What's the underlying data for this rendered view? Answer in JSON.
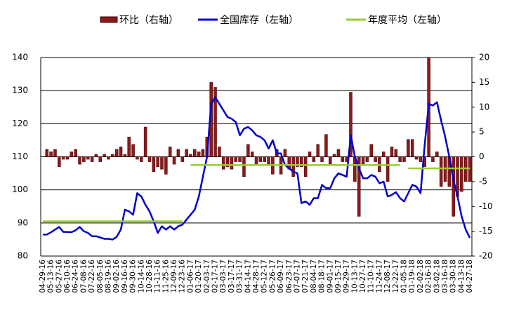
{
  "chart_data": {
    "type": "combo",
    "categories": [
      "04-29-16",
      null,
      "05-13-16",
      null,
      "05-27-16",
      null,
      "06-10-16",
      null,
      "06-24-16",
      null,
      "07-08-16",
      null,
      "07-22-16",
      null,
      "08-05-16",
      null,
      "08-19-16",
      null,
      "09-02-16",
      null,
      "09-16-16",
      null,
      "09-30-16",
      null,
      "10-14-16",
      null,
      "10-28-16",
      null,
      "11-11-16",
      null,
      "11-25-16",
      null,
      "12-09-16",
      null,
      "12-23-16",
      null,
      "01-06-17",
      null,
      "01-20-17",
      null,
      "02-03-17",
      null,
      "02-17-17",
      null,
      "03-03-17",
      null,
      "03-17-17",
      null,
      "03-31-17",
      null,
      "04-14-17",
      null,
      "04-28-17",
      null,
      "05-12-17",
      null,
      "05-26-17",
      null,
      "06-09-17",
      null,
      "06-23-17",
      null,
      "07-07-17",
      null,
      "07-21-17",
      null,
      "08-04-17",
      null,
      "08-18-17",
      null,
      "09-01-17",
      null,
      "09-15-17",
      null,
      "09-29-17",
      null,
      "10-13-17",
      null,
      "10-27-17",
      null,
      "11-10-17",
      null,
      "11-24-17",
      null,
      "12-08-17",
      null,
      "12-22-17",
      null,
      "01-05-18",
      null,
      "01-19-18",
      null,
      "02-02-18",
      null,
      "02-16-18",
      null,
      "03-02-18",
      null,
      "03-16-18",
      null,
      "03-30-18",
      null,
      "04-13-18",
      null,
      "04-27-18"
    ],
    "series": [
      {
        "name": "环比（右轴）",
        "type": "bar",
        "axis": "y2",
        "color": "#8b1a1a",
        "values": [
          0,
          1.5,
          1,
          1.5,
          -2,
          -0.5,
          -0.5,
          1,
          1.5,
          -1.5,
          -1,
          -0.5,
          -1,
          0.5,
          -1,
          0.5,
          -0.5,
          0.5,
          1.5,
          2,
          0.5,
          4,
          2.5,
          -0.5,
          -1,
          6,
          -1,
          -3,
          -2,
          -2.5,
          -3.5,
          2,
          -1.5,
          1.5,
          -1,
          1.5,
          0.5,
          1.5,
          1,
          1.5,
          4,
          15,
          14,
          2,
          -2.5,
          -2,
          -2.5,
          -1,
          -1,
          -4,
          2.5,
          1,
          -1.5,
          -1,
          -1,
          -1.5,
          -3.5,
          1.5,
          -3.5,
          1.5,
          -2.5,
          -4,
          -2,
          -2,
          -4,
          1,
          -1,
          2.5,
          -1,
          4.5,
          -1.5,
          0.5,
          1.5,
          -1,
          -1,
          13,
          -5,
          -12,
          -1.5,
          -1,
          2.5,
          -1,
          -3,
          1,
          -5,
          2,
          1.5,
          -1,
          -1,
          3.5,
          3.5,
          -0.5,
          -1,
          -2,
          20,
          -1,
          1,
          -6,
          -5,
          -6,
          -12,
          -8,
          -7,
          -5,
          -5
        ]
      },
      {
        "name": "全国库存（左轴）",
        "type": "line",
        "color": "#0000cc",
        "values": [
          86.5,
          86.5,
          87.2,
          88,
          88.8,
          87.3,
          87.3,
          87.2,
          87.8,
          88.8,
          87.5,
          87,
          86,
          86,
          85.6,
          85.2,
          85.2,
          85,
          85.8,
          88,
          94,
          93.5,
          92.5,
          99,
          98,
          95.5,
          93.5,
          90.5,
          87,
          89,
          88,
          89,
          88,
          89,
          89.5,
          91,
          92.5,
          94,
          98,
          104,
          110,
          126,
          128,
          126,
          124,
          122,
          121.5,
          120.5,
          116.5,
          118.5,
          119,
          118,
          116.5,
          116,
          115,
          112.5,
          115,
          111,
          111,
          107.5,
          106.5,
          105.5,
          105,
          96,
          96.5,
          95.5,
          97.5,
          97.5,
          101.5,
          100.5,
          100.5,
          103.5,
          105,
          104.5,
          104,
          116.5,
          110,
          106.5,
          103.5,
          103.5,
          104.5,
          104,
          102,
          102.5,
          98,
          98.5,
          99.3,
          97.5,
          96.5,
          99,
          101.5,
          101,
          99,
          113.5,
          126,
          125.5,
          126.5,
          121,
          116,
          110,
          103,
          98,
          92,
          88,
          85.5
        ]
      },
      {
        "name": "年度平均（左轴）",
        "type": "line",
        "color": "#99cc33",
        "values": [
          90.5,
          90.5,
          90.5,
          90.5,
          90.5,
          90.5,
          90.5,
          90.5,
          90.5,
          90.5,
          90.5,
          90.5,
          90.5,
          90.5,
          90.5,
          90.5,
          90.5,
          90.5,
          90.5,
          90.5,
          90.5,
          90.5,
          90.5,
          90.5,
          90.5,
          90.5,
          90.5,
          90.5,
          90.5,
          90.5,
          90.5,
          90.5,
          90.5,
          90.5,
          90.5,
          null,
          107.5,
          107.5,
          107.5,
          107.5,
          107.5,
          107.5,
          107.5,
          107.5,
          107.5,
          107.5,
          107.5,
          107.5,
          107.5,
          107.5,
          107.5,
          107.5,
          107.5,
          107.5,
          107.5,
          107.5,
          107.5,
          107.5,
          107.5,
          107.5,
          107.5,
          107.5,
          107.5,
          107.5,
          107.5,
          107.5,
          107.5,
          107.5,
          107.5,
          107.5,
          107.5,
          107.5,
          107.5,
          107.5,
          107.5,
          107.5,
          107.5,
          107.5,
          107.5,
          107.5,
          107.5,
          107.5,
          107.5,
          107.5,
          107.5,
          107.5,
          107.5,
          107.5,
          null,
          106.5,
          106.5,
          106.5,
          106.5,
          106.5,
          106.5,
          106.5,
          106.5,
          106.5,
          106.5,
          106.5,
          106.5,
          106.5,
          106.5,
          106.5,
          106.5
        ]
      }
    ],
    "ylim": [
      80,
      140
    ],
    "yticks": [
      80,
      90,
      100,
      110,
      120,
      130,
      140
    ],
    "y2lim": [
      -20,
      20
    ],
    "y2ticks": [
      -20,
      -15,
      -10,
      -5,
      0,
      5,
      10,
      15,
      20
    ],
    "grid": true
  }
}
